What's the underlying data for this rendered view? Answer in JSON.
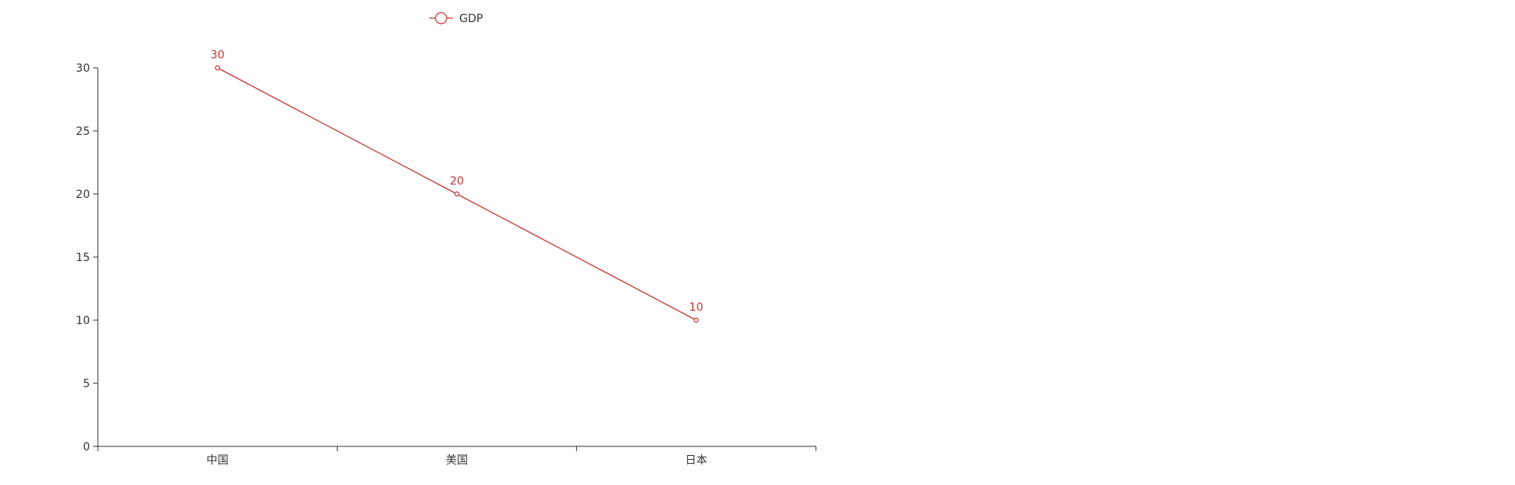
{
  "colors": {
    "series": "#c23531",
    "axis": "#333333",
    "background": "#ffffff"
  },
  "legend": {
    "icon": "circle-line-icon",
    "placement": "top-center-left"
  },
  "chart_data": {
    "type": "line",
    "title": "",
    "xlabel": "",
    "ylabel": "",
    "categories": [
      "中国",
      "美国",
      "日本"
    ],
    "series": [
      {
        "name": "GDP",
        "values": [
          30,
          20,
          10
        ],
        "show_labels": true,
        "marker": "hollow-circle"
      }
    ],
    "ylim": [
      0,
      30
    ],
    "yticks": [
      0,
      5,
      10,
      15,
      20,
      25,
      30
    ],
    "grid": false,
    "legend_placement": "top"
  }
}
